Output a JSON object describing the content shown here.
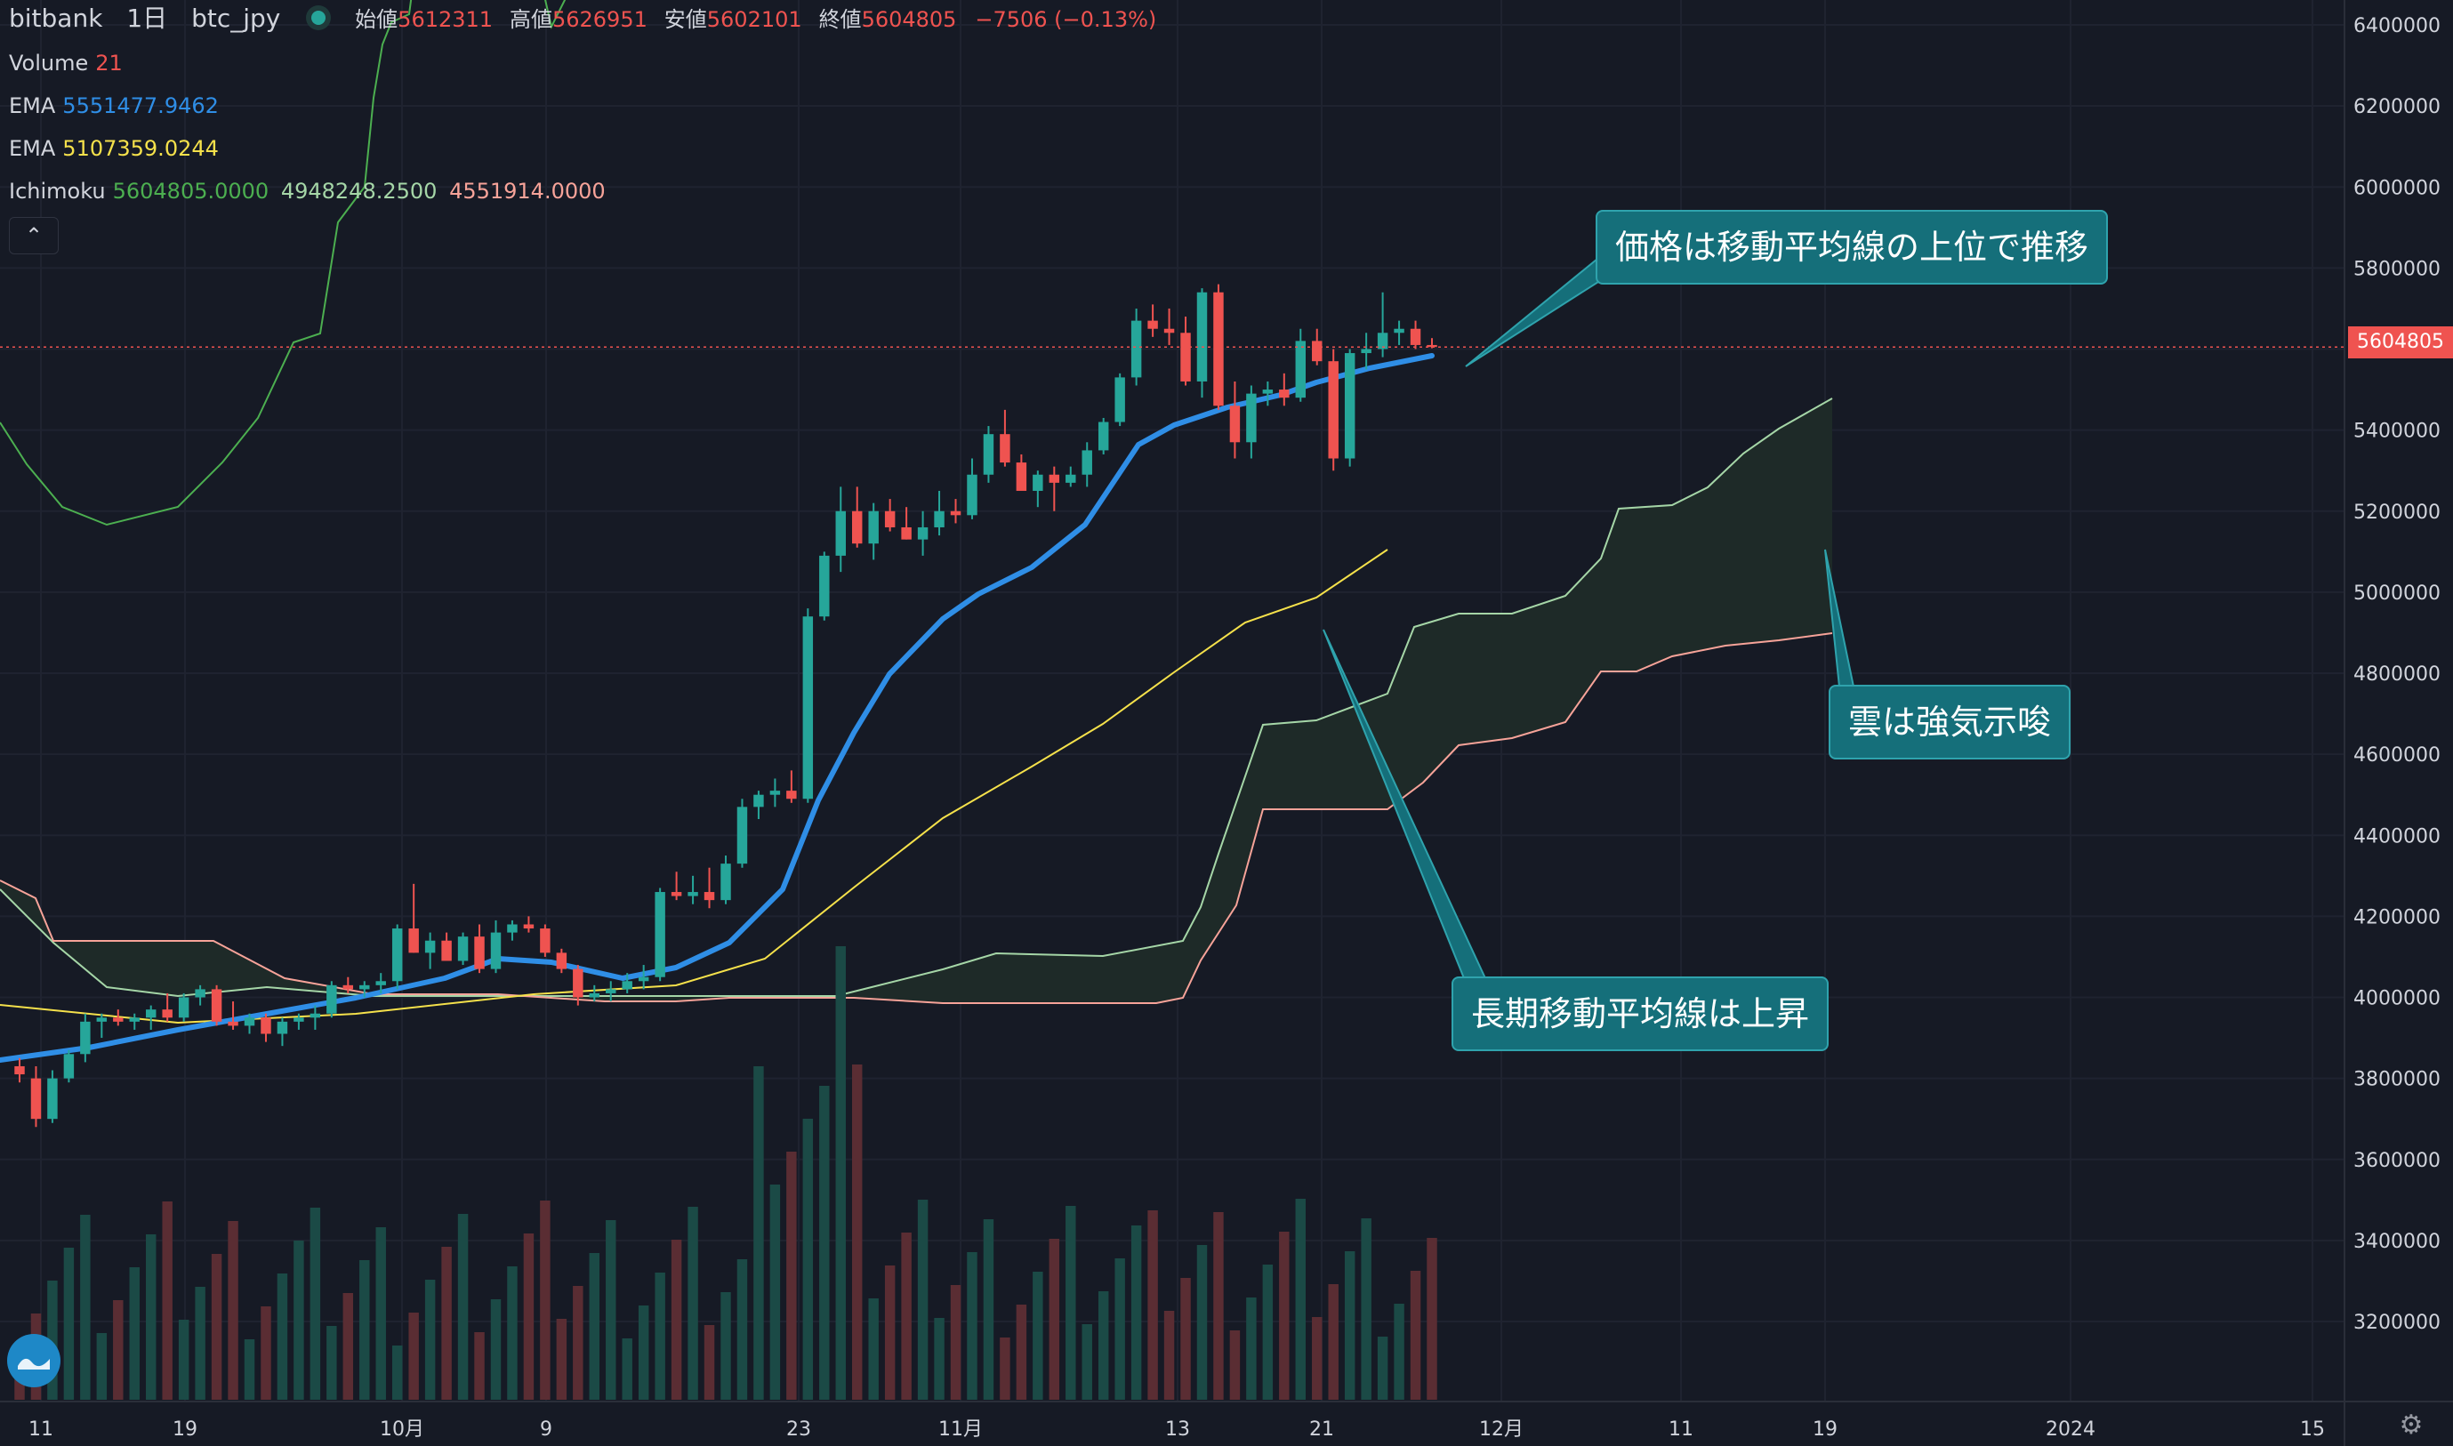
{
  "header": {
    "exchange": "bitbank",
    "interval": "1日",
    "symbol": "btc_jpy",
    "open_label": "始値",
    "open": "5612311",
    "high_label": "高値",
    "high": "5626951",
    "low_label": "安値",
    "low": "5602101",
    "close_label": "終値",
    "close": "5604805",
    "change": "−7506 (−0.13%)"
  },
  "indicators": {
    "volume_label": "Volume",
    "volume_value": "21",
    "ema1_label": "EMA",
    "ema1_value": "5551477.9462",
    "ema2_label": "EMA",
    "ema2_value": "5107359.0244",
    "ichimoku_label": "Ichimoku",
    "ichimoku_v1": "5604805.0000",
    "ichimoku_v2": "4948248.2500",
    "ichimoku_v3": "4551914.0000"
  },
  "callouts": {
    "c1": "価格は移動平均線の上位で推移",
    "c2": "雲は強気示唆",
    "c3": "長期移動平均線は上昇"
  },
  "price_tag": "5604805",
  "colors": {
    "up": "#26a69a",
    "down": "#ef5350",
    "ema_fast": "#2f8ee6",
    "ema_slow": "#f5e14b",
    "lagging": "#4caf50",
    "span_a": "#a5d6a7",
    "span_b": "#f7a399",
    "background": "#161a25"
  },
  "icons": {
    "logo": "bitbank-wave-icon",
    "settings": "gear-icon",
    "collapse": "chevron-up-icon"
  },
  "chart_data": {
    "type": "candlestick",
    "y_axis_ticks": [
      "6400000",
      "6200000",
      "6000000",
      "5800000",
      "5600000",
      "5400000",
      "5200000",
      "5000000",
      "4800000",
      "4600000",
      "4400000",
      "4200000",
      "4000000",
      "3800000",
      "3600000",
      "3400000",
      "3200000"
    ],
    "x_axis_ticks": [
      "11",
      "19",
      "10月",
      "9",
      "23",
      "11月",
      "13",
      "21",
      "12月",
      "11",
      "19",
      "2024",
      "15"
    ],
    "ylim": [
      3000000,
      6450000
    ],
    "grid": true,
    "candles_ohlc": [
      [
        3830000,
        3850000,
        3790000,
        3810000
      ],
      [
        3800000,
        3830000,
        3680000,
        3700000
      ],
      [
        3700000,
        3820000,
        3690000,
        3800000
      ],
      [
        3800000,
        3870000,
        3790000,
        3860000
      ],
      [
        3860000,
        3960000,
        3840000,
        3940000
      ],
      [
        3940000,
        3960000,
        3900000,
        3950000
      ],
      [
        3950000,
        3970000,
        3930000,
        3940000
      ],
      [
        3940000,
        3960000,
        3920000,
        3950000
      ],
      [
        3950000,
        3980000,
        3920000,
        3970000
      ],
      [
        3970000,
        4010000,
        3940000,
        3950000
      ],
      [
        3950000,
        4010000,
        3940000,
        4000000
      ],
      [
        4000000,
        4030000,
        3980000,
        4020000
      ],
      [
        4020000,
        4030000,
        3930000,
        3940000
      ],
      [
        3940000,
        3990000,
        3920000,
        3930000
      ],
      [
        3930000,
        3960000,
        3910000,
        3950000
      ],
      [
        3950000,
        3960000,
        3890000,
        3910000
      ],
      [
        3910000,
        3950000,
        3880000,
        3940000
      ],
      [
        3940000,
        3960000,
        3920000,
        3950000
      ],
      [
        3950000,
        3980000,
        3920000,
        3960000
      ],
      [
        3960000,
        4040000,
        3950000,
        4030000
      ],
      [
        4030000,
        4050000,
        4010000,
        4020000
      ],
      [
        4020000,
        4040000,
        4000000,
        4030000
      ],
      [
        4030000,
        4060000,
        4010000,
        4040000
      ],
      [
        4040000,
        4180000,
        4020000,
        4170000
      ],
      [
        4170000,
        4280000,
        4110000,
        4110000
      ],
      [
        4110000,
        4160000,
        4070000,
        4140000
      ],
      [
        4140000,
        4160000,
        4100000,
        4090000
      ],
      [
        4090000,
        4160000,
        4080000,
        4150000
      ],
      [
        4150000,
        4180000,
        4060000,
        4070000
      ],
      [
        4070000,
        4190000,
        4060000,
        4160000
      ],
      [
        4160000,
        4190000,
        4140000,
        4180000
      ],
      [
        4180000,
        4200000,
        4160000,
        4170000
      ],
      [
        4170000,
        4180000,
        4100000,
        4110000
      ],
      [
        4110000,
        4120000,
        4060000,
        4070000
      ],
      [
        4070000,
        4080000,
        3980000,
        4000000
      ],
      [
        4000000,
        4030000,
        3990000,
        4010000
      ],
      [
        4010000,
        4040000,
        3990000,
        4020000
      ],
      [
        4020000,
        4060000,
        4010000,
        4040000
      ],
      [
        4040000,
        4080000,
        4020000,
        4050000
      ],
      [
        4050000,
        4270000,
        4040000,
        4260000
      ],
      [
        4260000,
        4310000,
        4240000,
        4250000
      ],
      [
        4250000,
        4300000,
        4230000,
        4260000
      ],
      [
        4260000,
        4320000,
        4220000,
        4240000
      ],
      [
        4240000,
        4350000,
        4230000,
        4330000
      ],
      [
        4330000,
        4490000,
        4320000,
        4470000
      ],
      [
        4470000,
        4510000,
        4440000,
        4500000
      ],
      [
        4500000,
        4540000,
        4470000,
        4510000
      ],
      [
        4510000,
        4560000,
        4480000,
        4490000
      ],
      [
        4490000,
        4960000,
        4480000,
        4940000
      ],
      [
        4940000,
        5100000,
        4930000,
        5090000
      ],
      [
        5090000,
        5260000,
        5050000,
        5200000
      ],
      [
        5200000,
        5260000,
        5110000,
        5120000
      ],
      [
        5120000,
        5220000,
        5080000,
        5200000
      ],
      [
        5200000,
        5230000,
        5150000,
        5160000
      ],
      [
        5160000,
        5210000,
        5130000,
        5130000
      ],
      [
        5130000,
        5200000,
        5090000,
        5160000
      ],
      [
        5160000,
        5250000,
        5140000,
        5200000
      ],
      [
        5200000,
        5230000,
        5170000,
        5190000
      ],
      [
        5190000,
        5330000,
        5180000,
        5290000
      ],
      [
        5290000,
        5410000,
        5270000,
        5390000
      ],
      [
        5390000,
        5450000,
        5310000,
        5320000
      ],
      [
        5320000,
        5340000,
        5260000,
        5250000
      ],
      [
        5250000,
        5300000,
        5210000,
        5290000
      ],
      [
        5290000,
        5310000,
        5200000,
        5270000
      ],
      [
        5270000,
        5310000,
        5260000,
        5290000
      ],
      [
        5290000,
        5370000,
        5260000,
        5350000
      ],
      [
        5350000,
        5430000,
        5340000,
        5420000
      ],
      [
        5420000,
        5540000,
        5410000,
        5530000
      ],
      [
        5530000,
        5700000,
        5510000,
        5670000
      ],
      [
        5670000,
        5710000,
        5630000,
        5650000
      ],
      [
        5650000,
        5700000,
        5610000,
        5640000
      ],
      [
        5640000,
        5680000,
        5510000,
        5520000
      ],
      [
        5520000,
        5750000,
        5480000,
        5740000
      ],
      [
        5740000,
        5760000,
        5450000,
        5460000
      ],
      [
        5460000,
        5520000,
        5330000,
        5370000
      ],
      [
        5370000,
        5510000,
        5330000,
        5490000
      ],
      [
        5490000,
        5520000,
        5460000,
        5500000
      ],
      [
        5500000,
        5540000,
        5460000,
        5480000
      ],
      [
        5480000,
        5650000,
        5470000,
        5620000
      ],
      [
        5620000,
        5650000,
        5560000,
        5570000
      ],
      [
        5570000,
        5600000,
        5300000,
        5330000
      ],
      [
        5330000,
        5600000,
        5310000,
        5590000
      ],
      [
        5590000,
        5640000,
        5550000,
        5600000
      ],
      [
        5600000,
        5740000,
        5580000,
        5640000
      ],
      [
        5640000,
        5670000,
        5610000,
        5650000
      ],
      [
        5650000,
        5670000,
        5600000,
        5610000
      ],
      [
        5610000,
        5627000,
        5602000,
        5605000
      ]
    ]
  }
}
